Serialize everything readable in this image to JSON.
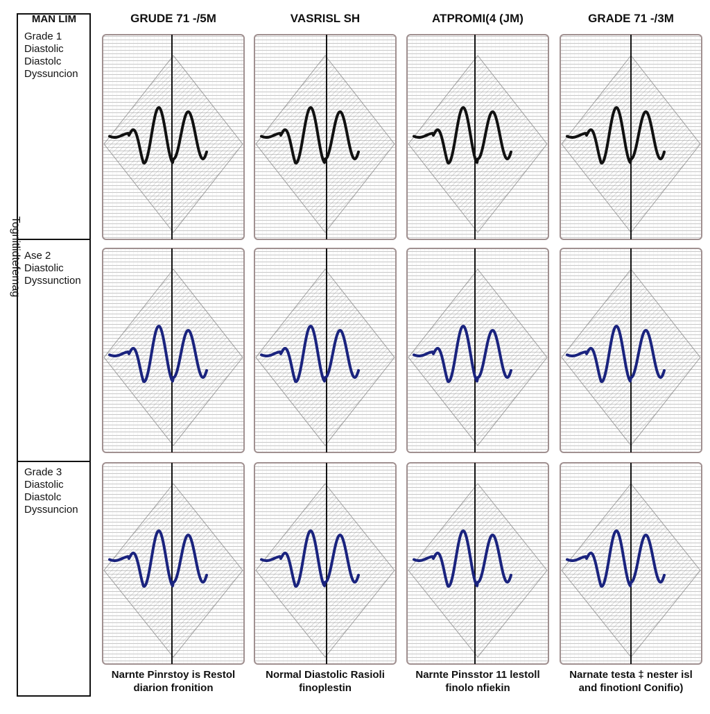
{
  "corner_label": "MAN LIM",
  "side_label": "Tognitlidtefemag",
  "columns": [
    {
      "header": "GRUDE 71 -/5M",
      "caption": [
        "Narnte Pinrstoy is Restol",
        "diarion fronition"
      ]
    },
    {
      "header": "VASRISL SH",
      "caption": [
        "Normal Diastolic Rasioli",
        "finoplestin"
      ]
    },
    {
      "header": "ATPROMI(4 (JM)",
      "caption": [
        "Narnte Pinsstor 11 lestoll",
        "finolo nfiekin"
      ]
    },
    {
      "header": "GRADE 71 -/3M",
      "caption": [
        "Narnate testa ‡ nester isl",
        "and finotionI Conifio)"
      ]
    }
  ],
  "rows": [
    {
      "lines": [
        "Grade 1",
        "Diastolic",
        "Diastolc",
        "Dyssuncion"
      ]
    },
    {
      "lines": [
        "Ase 2",
        "Diastolic",
        "Dyssunction"
      ]
    },
    {
      "lines": [
        "Grade 3",
        "Diastolic",
        "Diastolc",
        "Dyssuncion"
      ]
    }
  ]
}
